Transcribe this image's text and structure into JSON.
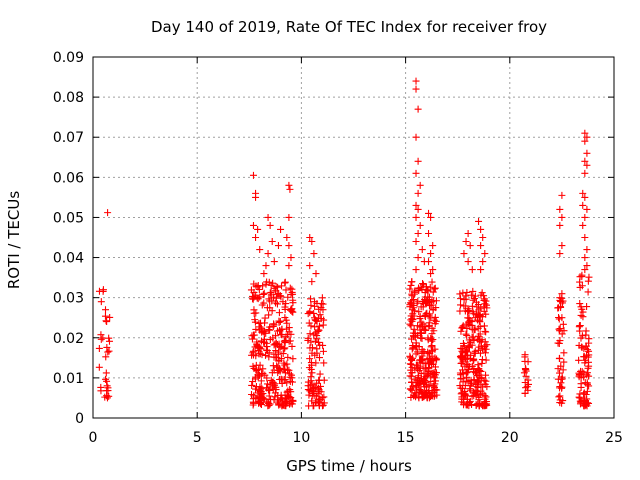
{
  "chart_data": {
    "type": "scatter",
    "title": "Day 140 of 2019, Rate Of TEC Index for receiver froy",
    "xlabel": "GPS time / hours",
    "ylabel": "ROTI / TECUs",
    "xlim": [
      0,
      25
    ],
    "ylim": [
      0,
      0.09
    ],
    "xticks": [
      0,
      5,
      10,
      15,
      20,
      25
    ],
    "yticks": [
      0,
      0.01,
      0.02,
      0.03,
      0.04,
      0.05,
      0.06,
      0.07,
      0.08,
      0.09
    ],
    "xtick_labels": [
      "0",
      "5",
      "10",
      "15",
      "20",
      "25"
    ],
    "ytick_labels": [
      "0",
      "0.01",
      "0.02",
      "0.03",
      "0.04",
      "0.05",
      "0.06",
      "0.07",
      "0.08",
      "0.09"
    ],
    "grid": true,
    "marker": "+",
    "color": "#ff0000",
    "clusters": [
      {
        "x_range": [
          0.3,
          0.8
        ],
        "y_range": [
          0.005,
          0.032
        ],
        "count": 30
      },
      {
        "x_range": [
          7.6,
          9.6
        ],
        "y_range": [
          0.003,
          0.034
        ],
        "count": 330
      },
      {
        "x_range": [
          10.3,
          11.1
        ],
        "y_range": [
          0.003,
          0.03
        ],
        "count": 110
      },
      {
        "x_range": [
          15.2,
          16.5
        ],
        "y_range": [
          0.005,
          0.034
        ],
        "count": 290
      },
      {
        "x_range": [
          17.6,
          18.9
        ],
        "y_range": [
          0.003,
          0.032
        ],
        "count": 270
      },
      {
        "x_range": [
          20.7,
          20.9
        ],
        "y_range": [
          0.006,
          0.016
        ],
        "count": 18
      },
      {
        "x_range": [
          22.3,
          22.6
        ],
        "y_range": [
          0.003,
          0.03
        ],
        "count": 45
      },
      {
        "x_range": [
          23.3,
          23.8
        ],
        "y_range": [
          0.003,
          0.036
        ],
        "count": 90
      }
    ],
    "points": [
      [
        0.7,
        0.0512
      ],
      [
        0.4,
        0.029
      ],
      [
        0.5,
        0.032
      ],
      [
        0.6,
        0.027
      ],
      [
        7.7,
        0.0605
      ],
      [
        7.8,
        0.056
      ],
      [
        7.8,
        0.055
      ],
      [
        7.7,
        0.048
      ],
      [
        7.9,
        0.047
      ],
      [
        7.8,
        0.045
      ],
      [
        8.0,
        0.042
      ],
      [
        8.4,
        0.05
      ],
      [
        8.5,
        0.048
      ],
      [
        8.6,
        0.044
      ],
      [
        8.4,
        0.041
      ],
      [
        8.7,
        0.039
      ],
      [
        8.9,
        0.043
      ],
      [
        9.0,
        0.047
      ],
      [
        8.3,
        0.038
      ],
      [
        8.2,
        0.036
      ],
      [
        9.4,
        0.058
      ],
      [
        9.45,
        0.057
      ],
      [
        9.4,
        0.05
      ],
      [
        9.3,
        0.045
      ],
      [
        9.4,
        0.043
      ],
      [
        9.5,
        0.04
      ],
      [
        9.4,
        0.038
      ],
      [
        10.4,
        0.045
      ],
      [
        10.5,
        0.044
      ],
      [
        10.6,
        0.041
      ],
      [
        10.4,
        0.038
      ],
      [
        10.7,
        0.036
      ],
      [
        10.5,
        0.034
      ],
      [
        15.5,
        0.084
      ],
      [
        15.5,
        0.082
      ],
      [
        15.6,
        0.077
      ],
      [
        15.5,
        0.07
      ],
      [
        15.6,
        0.064
      ],
      [
        15.5,
        0.061
      ],
      [
        15.7,
        0.058
      ],
      [
        15.6,
        0.056
      ],
      [
        15.5,
        0.053
      ],
      [
        15.6,
        0.052
      ],
      [
        15.5,
        0.05
      ],
      [
        15.7,
        0.048
      ],
      [
        15.6,
        0.046
      ],
      [
        15.5,
        0.044
      ],
      [
        15.8,
        0.042
      ],
      [
        15.6,
        0.04
      ],
      [
        15.9,
        0.039
      ],
      [
        15.5,
        0.037
      ],
      [
        16.1,
        0.051
      ],
      [
        16.2,
        0.05
      ],
      [
        16.1,
        0.046
      ],
      [
        16.3,
        0.043
      ],
      [
        16.2,
        0.041
      ],
      [
        16.1,
        0.039
      ],
      [
        16.3,
        0.037
      ],
      [
        16.2,
        0.036
      ],
      [
        15.3,
        0.034
      ],
      [
        17.9,
        0.044
      ],
      [
        18.0,
        0.046
      ],
      [
        18.1,
        0.043
      ],
      [
        17.8,
        0.041
      ],
      [
        18.0,
        0.039
      ],
      [
        18.2,
        0.037
      ],
      [
        18.5,
        0.049
      ],
      [
        18.6,
        0.047
      ],
      [
        18.7,
        0.045
      ],
      [
        18.6,
        0.043
      ],
      [
        18.8,
        0.041
      ],
      [
        18.7,
        0.039
      ],
      [
        18.6,
        0.037
      ],
      [
        22.5,
        0.0555
      ],
      [
        22.4,
        0.052
      ],
      [
        22.5,
        0.05
      ],
      [
        22.4,
        0.048
      ],
      [
        22.5,
        0.043
      ],
      [
        22.4,
        0.041
      ],
      [
        22.5,
        0.031
      ],
      [
        22.4,
        0.03
      ],
      [
        23.6,
        0.071
      ],
      [
        23.7,
        0.07
      ],
      [
        23.6,
        0.069
      ],
      [
        23.7,
        0.066
      ],
      [
        23.6,
        0.064
      ],
      [
        23.7,
        0.063
      ],
      [
        23.6,
        0.061
      ],
      [
        23.5,
        0.056
      ],
      [
        23.6,
        0.055
      ],
      [
        23.5,
        0.053
      ],
      [
        23.7,
        0.052
      ],
      [
        23.6,
        0.05
      ],
      [
        23.5,
        0.048
      ],
      [
        23.6,
        0.045
      ],
      [
        23.7,
        0.042
      ],
      [
        23.6,
        0.04
      ],
      [
        23.7,
        0.038
      ],
      [
        23.6,
        0.037
      ]
    ]
  }
}
